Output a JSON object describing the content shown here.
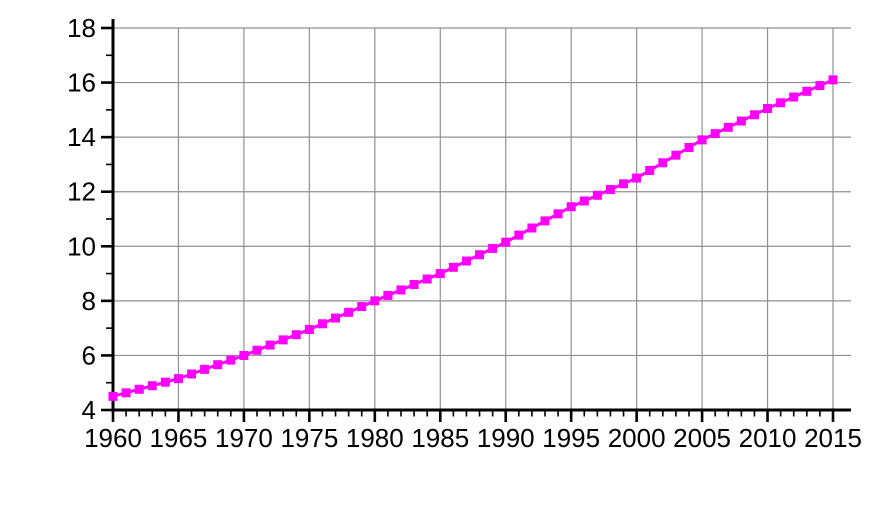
{
  "chart_data": {
    "type": "line",
    "title": "",
    "xlabel": "",
    "ylabel": "",
    "x": [
      1960,
      1961,
      1962,
      1963,
      1964,
      1965,
      1966,
      1967,
      1968,
      1969,
      1970,
      1971,
      1972,
      1973,
      1974,
      1975,
      1976,
      1977,
      1978,
      1979,
      1980,
      1981,
      1982,
      1983,
      1984,
      1985,
      1986,
      1987,
      1988,
      1989,
      1990,
      1991,
      1992,
      1993,
      1994,
      1995,
      1996,
      1997,
      1998,
      1999,
      2000,
      2001,
      2002,
      2003,
      2004,
      2005,
      2006,
      2007,
      2008,
      2009,
      2010,
      2011,
      2012,
      2013,
      2014,
      2015
    ],
    "series": [
      {
        "name": "magenta-series",
        "color": "#FF00FF",
        "marker": "square",
        "values": [
          4.5,
          4.63,
          4.76,
          4.89,
          5.02,
          5.15,
          5.32,
          5.49,
          5.66,
          5.83,
          6.0,
          6.19,
          6.38,
          6.57,
          6.76,
          6.95,
          7.16,
          7.37,
          7.58,
          7.79,
          8.0,
          8.2,
          8.4,
          8.6,
          8.8,
          9.0,
          9.23,
          9.46,
          9.69,
          9.92,
          10.15,
          10.41,
          10.67,
          10.93,
          11.19,
          11.45,
          11.66,
          11.87,
          12.08,
          12.29,
          12.5,
          12.78,
          13.06,
          13.34,
          13.62,
          13.9,
          14.13,
          14.36,
          14.59,
          14.82,
          15.05,
          15.26,
          15.47,
          15.68,
          15.89,
          16.1
        ]
      }
    ],
    "x_tick_labels": [
      "1960",
      "1965",
      "1970",
      "1975",
      "1980",
      "1985",
      "1990",
      "1995",
      "2000",
      "2005",
      "2010",
      "2015"
    ],
    "x_ticks_major": [
      1960,
      1965,
      1970,
      1975,
      1980,
      1985,
      1990,
      1995,
      2000,
      2005,
      2010,
      2015
    ],
    "x_minor_tick_step": 1,
    "y_tick_labels": [
      "4",
      "6",
      "8",
      "10",
      "12",
      "14",
      "16",
      "18"
    ],
    "y_ticks_major": [
      4,
      6,
      8,
      10,
      12,
      14,
      16,
      18
    ],
    "y_minor_tick_step": 1,
    "xlim": [
      1960,
      2015
    ],
    "ylim": [
      4,
      18
    ],
    "grid": true,
    "legend_position": "none",
    "colors": {
      "line": "#FF00FF",
      "marker": "#FF00FF",
      "grid": "#909090",
      "axis": "#000000",
      "background": "#FFFFFF",
      "tick_label": "#000000"
    }
  }
}
